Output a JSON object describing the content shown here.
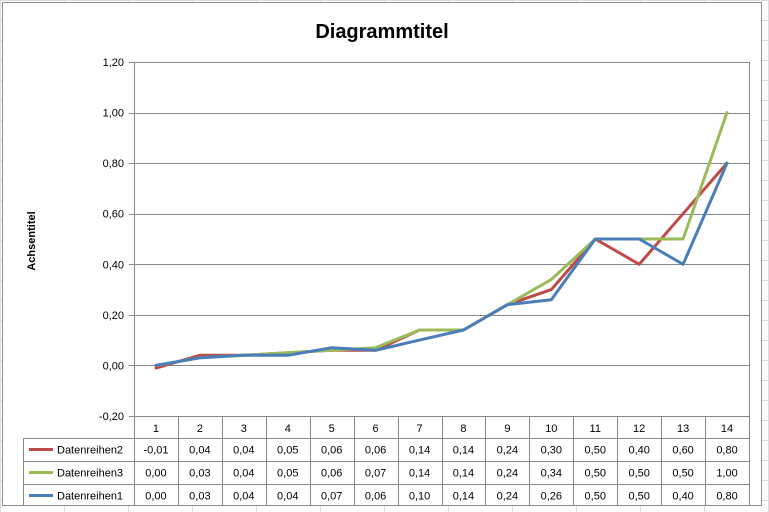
{
  "chart_data": {
    "type": "line",
    "title": "Diagrammtitel",
    "xlabel": "",
    "ylabel": "Achsentitel",
    "categories": [
      "1",
      "2",
      "3",
      "4",
      "5",
      "6",
      "7",
      "8",
      "9",
      "10",
      "11",
      "12",
      "13",
      "14"
    ],
    "y_tick_labels": [
      "1,20",
      "1,00",
      "0,80",
      "0,60",
      "0,40",
      "0,20",
      "0,00",
      "-0,20"
    ],
    "ylim": [
      -0.2,
      1.2
    ],
    "grid": true,
    "legend": "data-table",
    "series": [
      {
        "name": "Datenreihen2",
        "color": "#be4b48",
        "values": [
          -0.01,
          0.04,
          0.04,
          0.05,
          0.06,
          0.06,
          0.14,
          0.14,
          0.24,
          0.3,
          0.5,
          0.4,
          0.6,
          0.8
        ],
        "labels": [
          "-0,01",
          "0,04",
          "0,04",
          "0,05",
          "0,06",
          "0,06",
          "0,14",
          "0,14",
          "0,24",
          "0,30",
          "0,50",
          "0,40",
          "0,60",
          "0,80"
        ]
      },
      {
        "name": "Datenreihen3",
        "color": "#9bbb59",
        "values": [
          0.0,
          0.03,
          0.04,
          0.05,
          0.06,
          0.07,
          0.14,
          0.14,
          0.24,
          0.34,
          0.5,
          0.5,
          0.5,
          1.0
        ],
        "labels": [
          "0,00",
          "0,03",
          "0,04",
          "0,05",
          "0,06",
          "0,07",
          "0,14",
          "0,14",
          "0,24",
          "0,34",
          "0,50",
          "0,50",
          "0,50",
          "1,00"
        ]
      },
      {
        "name": "Datenreihen1",
        "color": "#4a7ebb",
        "values": [
          0.0,
          0.03,
          0.04,
          0.04,
          0.07,
          0.06,
          0.1,
          0.14,
          0.24,
          0.26,
          0.5,
          0.5,
          0.4,
          0.8
        ],
        "labels": [
          "0,00",
          "0,03",
          "0,04",
          "0,04",
          "0,07",
          "0,06",
          "0,10",
          "0,14",
          "0,24",
          "0,26",
          "0,50",
          "0,50",
          "0,40",
          "0,80"
        ]
      }
    ]
  }
}
